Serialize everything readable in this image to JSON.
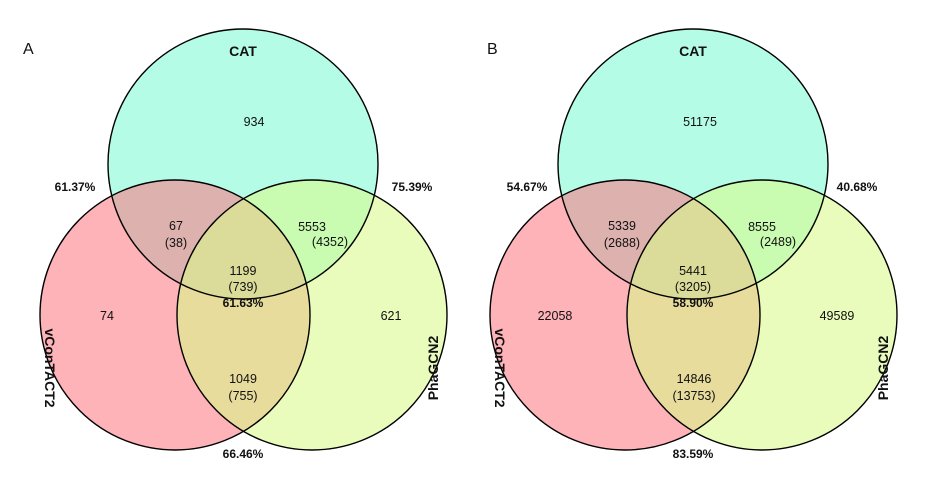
{
  "colors": {
    "cat": "#4cf7c3",
    "phagcn2": "#d9fa8a",
    "vcontact2": "#fb7c84",
    "stroke": "#000000"
  },
  "panels": [
    {
      "label": "A",
      "sets": {
        "cat": "CAT",
        "phagcn2": "PhaGCN2",
        "vcontact2": "vConTACT2"
      },
      "regions": {
        "cat_only": "934",
        "vcontact2_only": "74",
        "phagcn2_only": "621",
        "cat_vcontact2": [
          "67",
          "(38)"
        ],
        "cat_phagcn2": [
          "5553",
          "(4352)"
        ],
        "vcontact2_phagcn2": [
          "1049",
          "(755)"
        ],
        "all_three": [
          "1199",
          "(739)",
          "61.63%"
        ]
      },
      "percentages": {
        "cat_vcontact2": "61.37%",
        "cat_phagcn2": "75.39%",
        "vcontact2_phagcn2": "66.46%"
      }
    },
    {
      "label": "B",
      "sets": {
        "cat": "CAT",
        "phagcn2": "PhaGCN2",
        "vcontact2": "vConTACT2"
      },
      "regions": {
        "cat_only": "51175",
        "vcontact2_only": "22058",
        "phagcn2_only": "49589",
        "cat_vcontact2": [
          "5339",
          "(2688)"
        ],
        "cat_phagcn2": [
          "8555",
          "(2489)"
        ],
        "vcontact2_phagcn2": [
          "14846",
          "(13753)"
        ],
        "all_three": [
          "5441",
          "(3205)",
          "58.90%"
        ]
      },
      "percentages": {
        "cat_vcontact2": "54.67%",
        "cat_phagcn2": "40.68%",
        "vcontact2_phagcn2": "83.59%"
      }
    }
  ]
}
